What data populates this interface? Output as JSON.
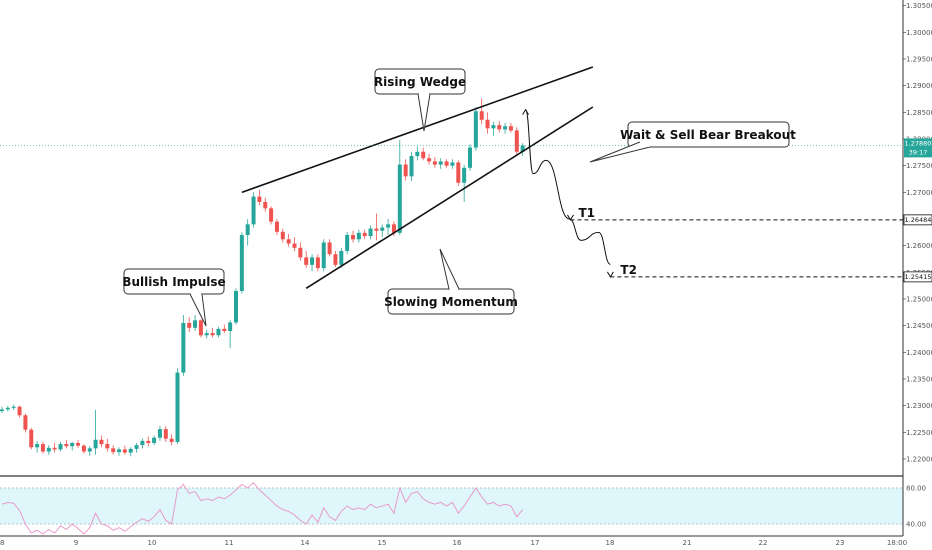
{
  "colors": {
    "up": "#26a69a",
    "down": "#ef5350",
    "wick_up": "#26a69a",
    "wick_down": "#ef5350",
    "rsi_line": "#e891c8",
    "rsi_band": "#dff6fb",
    "annotation": "#111111",
    "price_badge": "#26a69a",
    "grid": "#f2f2f2"
  },
  "callouts": {
    "rising_wedge": "Rising Wedge",
    "bullish_impulse": "Bullish Impulse",
    "slowing_momentum": "Slowing Momentum",
    "wait_sell": "Wait & Sell Bear Breakout"
  },
  "targets": {
    "t1_label": "T1",
    "t2_label": "T2",
    "t1_price": "1.26484",
    "t2_price": "1.25415"
  },
  "badges": {
    "current_price": "1.27880",
    "countdown": "39:17"
  },
  "price_axis": [
    "1.30500",
    "1.30000",
    "1.29500",
    "1.29000",
    "1.28500",
    "1.28000",
    "1.27500",
    "1.27000",
    "1.26500",
    "1.26000",
    "1.25500",
    "1.25000",
    "1.24500",
    "1.24000",
    "1.23500",
    "1.23000",
    "1.22500",
    "1.22000"
  ],
  "rsi_axis": [
    "80.00",
    "40.00"
  ],
  "time_axis": [
    "8",
    "9",
    "10",
    "11",
    "14",
    "15",
    "16",
    "17",
    "18",
    "21",
    "22",
    "23",
    "18:00"
  ],
  "chart_data": {
    "type": "candlestick",
    "ylim": [
      1.2185,
      1.3055
    ],
    "ohlc": [
      {
        "o": 1.229,
        "h": 1.2298,
        "l": 1.2286,
        "c": 1.2293
      },
      {
        "o": 1.2293,
        "h": 1.23,
        "l": 1.2289,
        "c": 1.2296
      },
      {
        "o": 1.2296,
        "h": 1.2302,
        "l": 1.2292,
        "c": 1.2298
      },
      {
        "o": 1.2298,
        "h": 1.23,
        "l": 1.2278,
        "c": 1.2282
      },
      {
        "o": 1.2282,
        "h": 1.2285,
        "l": 1.225,
        "c": 1.2255
      },
      {
        "o": 1.2255,
        "h": 1.2258,
        "l": 1.2218,
        "c": 1.2222
      },
      {
        "o": 1.2222,
        "h": 1.2234,
        "l": 1.2212,
        "c": 1.2228
      },
      {
        "o": 1.2228,
        "h": 1.2232,
        "l": 1.221,
        "c": 1.2214
      },
      {
        "o": 1.2214,
        "h": 1.2226,
        "l": 1.2208,
        "c": 1.2221
      },
      {
        "o": 1.2221,
        "h": 1.223,
        "l": 1.2212,
        "c": 1.2218
      },
      {
        "o": 1.2218,
        "h": 1.2232,
        "l": 1.2215,
        "c": 1.2228
      },
      {
        "o": 1.2228,
        "h": 1.2236,
        "l": 1.222,
        "c": 1.2224
      },
      {
        "o": 1.2224,
        "h": 1.2232,
        "l": 1.2216,
        "c": 1.223
      },
      {
        "o": 1.223,
        "h": 1.2236,
        "l": 1.2221,
        "c": 1.2225
      },
      {
        "o": 1.2225,
        "h": 1.2228,
        "l": 1.221,
        "c": 1.2214
      },
      {
        "o": 1.2214,
        "h": 1.2224,
        "l": 1.2206,
        "c": 1.222
      },
      {
        "o": 1.222,
        "h": 1.2292,
        "l": 1.2208,
        "c": 1.2236
      },
      {
        "o": 1.2236,
        "h": 1.2244,
        "l": 1.2222,
        "c": 1.2228
      },
      {
        "o": 1.2228,
        "h": 1.2238,
        "l": 1.2214,
        "c": 1.222
      },
      {
        "o": 1.222,
        "h": 1.2226,
        "l": 1.2208,
        "c": 1.2213
      },
      {
        "o": 1.2213,
        "h": 1.2222,
        "l": 1.2206,
        "c": 1.2218
      },
      {
        "o": 1.2218,
        "h": 1.2225,
        "l": 1.2208,
        "c": 1.2212
      },
      {
        "o": 1.2212,
        "h": 1.2222,
        "l": 1.2205,
        "c": 1.2219
      },
      {
        "o": 1.2219,
        "h": 1.223,
        "l": 1.2212,
        "c": 1.2226
      },
      {
        "o": 1.2226,
        "h": 1.2238,
        "l": 1.222,
        "c": 1.2234
      },
      {
        "o": 1.2234,
        "h": 1.2242,
        "l": 1.2224,
        "c": 1.223
      },
      {
        "o": 1.223,
        "h": 1.2244,
        "l": 1.2226,
        "c": 1.224
      },
      {
        "o": 1.224,
        "h": 1.2262,
        "l": 1.2234,
        "c": 1.2256
      },
      {
        "o": 1.2256,
        "h": 1.2262,
        "l": 1.2232,
        "c": 1.2238
      },
      {
        "o": 1.2238,
        "h": 1.2246,
        "l": 1.2226,
        "c": 1.2232
      },
      {
        "o": 1.2232,
        "h": 1.237,
        "l": 1.2228,
        "c": 1.2362
      },
      {
        "o": 1.2362,
        "h": 1.247,
        "l": 1.2356,
        "c": 1.2455
      },
      {
        "o": 1.2455,
        "h": 1.2466,
        "l": 1.2438,
        "c": 1.2446
      },
      {
        "o": 1.2446,
        "h": 1.247,
        "l": 1.244,
        "c": 1.246
      },
      {
        "o": 1.246,
        "h": 1.2462,
        "l": 1.2428,
        "c": 1.2432
      },
      {
        "o": 1.2432,
        "h": 1.2442,
        "l": 1.2426,
        "c": 1.2436
      },
      {
        "o": 1.2436,
        "h": 1.2446,
        "l": 1.2428,
        "c": 1.2432
      },
      {
        "o": 1.2432,
        "h": 1.2448,
        "l": 1.2428,
        "c": 1.2444
      },
      {
        "o": 1.2444,
        "h": 1.2452,
        "l": 1.2436,
        "c": 1.244
      },
      {
        "o": 1.244,
        "h": 1.246,
        "l": 1.2408,
        "c": 1.2456
      },
      {
        "o": 1.2456,
        "h": 1.252,
        "l": 1.2452,
        "c": 1.2515
      },
      {
        "o": 1.2515,
        "h": 1.2625,
        "l": 1.251,
        "c": 1.262
      },
      {
        "o": 1.262,
        "h": 1.265,
        "l": 1.26,
        "c": 1.264
      },
      {
        "o": 1.264,
        "h": 1.27,
        "l": 1.2634,
        "c": 1.2692
      },
      {
        "o": 1.2692,
        "h": 1.2705,
        "l": 1.2676,
        "c": 1.2682
      },
      {
        "o": 1.2682,
        "h": 1.269,
        "l": 1.2664,
        "c": 1.267
      },
      {
        "o": 1.267,
        "h": 1.2674,
        "l": 1.264,
        "c": 1.2645
      },
      {
        "o": 1.2645,
        "h": 1.265,
        "l": 1.262,
        "c": 1.2626
      },
      {
        "o": 1.2626,
        "h": 1.2632,
        "l": 1.2606,
        "c": 1.2612
      },
      {
        "o": 1.2612,
        "h": 1.2622,
        "l": 1.2598,
        "c": 1.2604
      },
      {
        "o": 1.2604,
        "h": 1.2616,
        "l": 1.259,
        "c": 1.2596
      },
      {
        "o": 1.2596,
        "h": 1.2606,
        "l": 1.2572,
        "c": 1.2578
      },
      {
        "o": 1.2578,
        "h": 1.259,
        "l": 1.2558,
        "c": 1.2564
      },
      {
        "o": 1.2564,
        "h": 1.2584,
        "l": 1.2552,
        "c": 1.2578
      },
      {
        "o": 1.2578,
        "h": 1.2584,
        "l": 1.2552,
        "c": 1.2558
      },
      {
        "o": 1.2558,
        "h": 1.2612,
        "l": 1.2552,
        "c": 1.2606
      },
      {
        "o": 1.2606,
        "h": 1.2612,
        "l": 1.258,
        "c": 1.2584
      },
      {
        "o": 1.2584,
        "h": 1.259,
        "l": 1.256,
        "c": 1.2564
      },
      {
        "o": 1.2564,
        "h": 1.2596,
        "l": 1.2558,
        "c": 1.259
      },
      {
        "o": 1.259,
        "h": 1.2626,
        "l": 1.2584,
        "c": 1.262
      },
      {
        "o": 1.262,
        "h": 1.2628,
        "l": 1.2606,
        "c": 1.2612
      },
      {
        "o": 1.2612,
        "h": 1.263,
        "l": 1.2606,
        "c": 1.2624
      },
      {
        "o": 1.2624,
        "h": 1.263,
        "l": 1.2612,
        "c": 1.2618
      },
      {
        "o": 1.2618,
        "h": 1.2638,
        "l": 1.2612,
        "c": 1.2632
      },
      {
        "o": 1.2632,
        "h": 1.266,
        "l": 1.261,
        "c": 1.2628
      },
      {
        "o": 1.2628,
        "h": 1.264,
        "l": 1.2616,
        "c": 1.2634
      },
      {
        "o": 1.2634,
        "h": 1.265,
        "l": 1.262,
        "c": 1.264
      },
      {
        "o": 1.264,
        "h": 1.2646,
        "l": 1.2618,
        "c": 1.2624
      },
      {
        "o": 1.2624,
        "h": 1.2798,
        "l": 1.262,
        "c": 1.2752
      },
      {
        "o": 1.2752,
        "h": 1.2762,
        "l": 1.2722,
        "c": 1.273
      },
      {
        "o": 1.273,
        "h": 1.2776,
        "l": 1.2722,
        "c": 1.2768
      },
      {
        "o": 1.2768,
        "h": 1.2786,
        "l": 1.276,
        "c": 1.2776
      },
      {
        "o": 1.2776,
        "h": 1.2784,
        "l": 1.276,
        "c": 1.2764
      },
      {
        "o": 1.2764,
        "h": 1.2772,
        "l": 1.2752,
        "c": 1.2758
      },
      {
        "o": 1.2758,
        "h": 1.2766,
        "l": 1.2746,
        "c": 1.2752
      },
      {
        "o": 1.2752,
        "h": 1.2764,
        "l": 1.2744,
        "c": 1.2758
      },
      {
        "o": 1.2758,
        "h": 1.2762,
        "l": 1.2746,
        "c": 1.275
      },
      {
        "o": 1.275,
        "h": 1.2762,
        "l": 1.2744,
        "c": 1.2756
      },
      {
        "o": 1.2756,
        "h": 1.276,
        "l": 1.2712,
        "c": 1.2718
      },
      {
        "o": 1.2718,
        "h": 1.2752,
        "l": 1.2682,
        "c": 1.2746
      },
      {
        "o": 1.2746,
        "h": 1.279,
        "l": 1.274,
        "c": 1.2784
      },
      {
        "o": 1.2784,
        "h": 1.286,
        "l": 1.2778,
        "c": 1.2852
      },
      {
        "o": 1.2852,
        "h": 1.2876,
        "l": 1.2828,
        "c": 1.2836
      },
      {
        "o": 1.2836,
        "h": 1.285,
        "l": 1.281,
        "c": 1.282
      },
      {
        "o": 1.282,
        "h": 1.2832,
        "l": 1.2806,
        "c": 1.2826
      },
      {
        "o": 1.2826,
        "h": 1.2834,
        "l": 1.2812,
        "c": 1.2818
      },
      {
        "o": 1.2818,
        "h": 1.283,
        "l": 1.281,
        "c": 1.2824
      },
      {
        "o": 1.2824,
        "h": 1.283,
        "l": 1.2812,
        "c": 1.2816
      },
      {
        "o": 1.2816,
        "h": 1.2822,
        "l": 1.277,
        "c": 1.2776
      },
      {
        "o": 1.2776,
        "h": 1.2792,
        "l": 1.2768,
        "c": 1.2788
      }
    ],
    "rsi": [
      62,
      64,
      63,
      55,
      40,
      30,
      33,
      28,
      34,
      30,
      38,
      34,
      40,
      35,
      29,
      36,
      52,
      40,
      38,
      33,
      36,
      32,
      37,
      42,
      46,
      43,
      48,
      56,
      44,
      40,
      78,
      84,
      74,
      76,
      66,
      68,
      66,
      70,
      68,
      72,
      78,
      84,
      80,
      86,
      78,
      72,
      66,
      60,
      56,
      54,
      50,
      44,
      40,
      50,
      42,
      58,
      48,
      44,
      54,
      60,
      56,
      58,
      56,
      62,
      58,
      60,
      62,
      52,
      80,
      64,
      74,
      76,
      68,
      64,
      62,
      64,
      60,
      64,
      52,
      60,
      70,
      80,
      70,
      62,
      64,
      60,
      62,
      60,
      48,
      56
    ],
    "wedge_upper": [
      {
        "x": 41,
        "p": 1.27
      },
      {
        "x": 101,
        "p": 1.2935
      }
    ],
    "wedge_lower": [
      {
        "x": 52,
        "p": 1.252
      },
      {
        "x": 101,
        "p": 1.286
      }
    ],
    "projection_path": [
      {
        "x": 89.5,
        "p": 1.2855
      },
      {
        "x": 90.8,
        "p": 1.2735
      },
      {
        "x": 93,
        "p": 1.276
      },
      {
        "x": 97,
        "p": 1.265
      },
      {
        "x": 99,
        "p": 1.261
      },
      {
        "x": 102,
        "p": 1.2625
      },
      {
        "x": 104,
        "p": 1.2565
      }
    ],
    "t1": 1.26484,
    "t2": 1.25415
  }
}
